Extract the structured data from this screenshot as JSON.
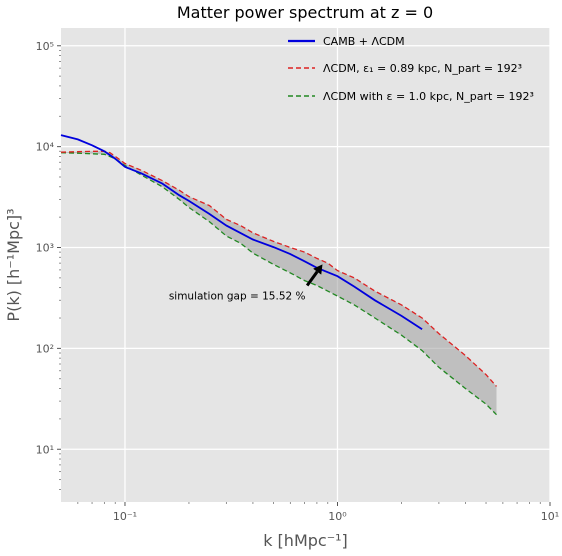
{
  "chart_data": {
    "type": "line",
    "title": "Matter power spectrum at z = 0",
    "xlabel": "k [hMpc⁻¹]",
    "ylabel": "P(k) [h⁻¹Mpc]³",
    "xscale": "log",
    "yscale": "log",
    "xlim": [
      0.05,
      10
    ],
    "ylim": [
      3,
      150000
    ],
    "grid": true,
    "legend_position": "top-right",
    "x_ticks": [
      {
        "value": 0.1,
        "label": "10⁻¹"
      },
      {
        "value": 1,
        "label": "10⁰"
      },
      {
        "value": 10,
        "label": "10¹"
      }
    ],
    "y_ticks": [
      {
        "value": 10,
        "label": "10¹"
      },
      {
        "value": 100,
        "label": "10²"
      },
      {
        "value": 1000,
        "label": "10³"
      },
      {
        "value": 10000,
        "label": "10⁴"
      },
      {
        "value": 100000,
        "label": "10⁵"
      }
    ],
    "series": [
      {
        "name": "CAMB + ΛCDM",
        "color": "#0000dd",
        "style": "solid",
        "x": [
          0.05,
          0.06,
          0.07,
          0.08,
          0.09,
          0.1,
          0.12,
          0.15,
          0.18,
          0.2,
          0.25,
          0.3,
          0.4,
          0.5,
          0.6,
          0.7,
          0.8,
          1.0,
          1.2,
          1.5,
          2.0,
          2.5
        ],
        "y": [
          13000,
          11800,
          10300,
          9000,
          7600,
          6300,
          5400,
          4300,
          3300,
          2900,
          2150,
          1650,
          1200,
          1010,
          860,
          730,
          630,
          520,
          410,
          300,
          210,
          155
        ]
      },
      {
        "name": "ΛCDM, ε₁ = 0.89 kpc, N_part = 192³",
        "color": "#dd2222",
        "style": "dashed",
        "x": [
          0.05,
          0.06,
          0.07,
          0.08,
          0.085,
          0.09,
          0.1,
          0.12,
          0.15,
          0.18,
          0.2,
          0.25,
          0.3,
          0.35,
          0.4,
          0.5,
          0.6,
          0.7,
          0.8,
          0.9,
          1.0,
          1.2,
          1.5,
          2.0,
          2.5,
          3.0,
          4.0,
          5.0,
          5.6
        ],
        "y": [
          8800,
          8900,
          9000,
          9000,
          8700,
          8000,
          6800,
          5800,
          4600,
          3700,
          3200,
          2600,
          1900,
          1650,
          1400,
          1150,
          1000,
          900,
          780,
          700,
          590,
          500,
          370,
          270,
          200,
          140,
          85,
          55,
          42
        ]
      },
      {
        "name": "ΛCDM with ε = 1.0 kpc, N_part = 192³",
        "color": "#228822",
        "style": "dashed",
        "x": [
          0.05,
          0.06,
          0.07,
          0.08,
          0.09,
          0.1,
          0.12,
          0.15,
          0.18,
          0.2,
          0.25,
          0.3,
          0.35,
          0.4,
          0.5,
          0.6,
          0.7,
          0.8,
          1.0,
          1.2,
          1.5,
          2.0,
          2.5,
          3.0,
          4.0,
          5.0,
          5.6
        ],
        "y": [
          8700,
          8600,
          8500,
          8400,
          7600,
          6500,
          5200,
          4000,
          3000,
          2500,
          1800,
          1300,
          1100,
          880,
          680,
          560,
          470,
          420,
          330,
          270,
          200,
          135,
          95,
          65,
          40,
          28,
          22
        ]
      }
    ],
    "shaded_region": {
      "between": [
        "ΛCDM, ε₁ = 0.89 kpc, N_part = 192³",
        "ΛCDM with ε = 1.0 kpc, N_part = 192³"
      ],
      "color": "#a0a0a0"
    },
    "annotation": {
      "text": "simulation gap = 15.52 %",
      "arrow_from": [
        0.72,
        420
      ],
      "arrow_to": [
        0.85,
        680
      ]
    }
  }
}
